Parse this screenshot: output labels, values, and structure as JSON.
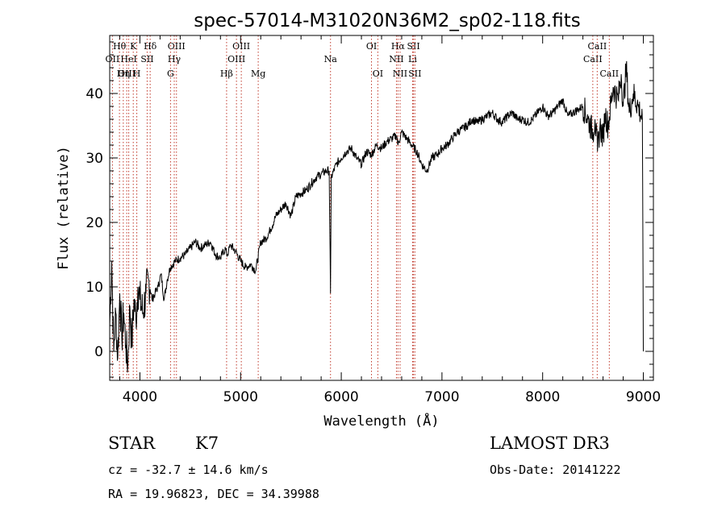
{
  "chart_data": {
    "type": "line",
    "title": "spec-57014-M31020N36M2_sp02-118.fits",
    "xlabel": "Wavelength (Å)",
    "ylabel": "Flux (relative)",
    "xlim": [
      3700,
      9100
    ],
    "ylim": [
      -4.5,
      49
    ],
    "x_ticks": [
      "4000",
      "5000",
      "6000",
      "7000",
      "8000",
      "9000"
    ],
    "y_ticks": [
      "0",
      "10",
      "20",
      "30",
      "40"
    ],
    "grid": false,
    "series": [
      {
        "x": [
          3700,
          3720,
          3740,
          3760,
          3780,
          3800,
          3820,
          3840,
          3860,
          3880,
          3900,
          3920,
          3940,
          3960,
          3980,
          4000,
          4030,
          4060,
          4090,
          4120,
          4150,
          4180,
          4210,
          4240,
          4270,
          4300,
          4350,
          4400,
          4450,
          4500,
          4550,
          4600,
          4650,
          4700,
          4750,
          4800,
          4850,
          4861,
          4880,
          4900,
          4950,
          5000,
          5050,
          5100,
          5150,
          5200,
          5250,
          5300,
          5350,
          5400,
          5450,
          5500,
          5550,
          5600,
          5650,
          5700,
          5750,
          5800,
          5850,
          5880,
          5893,
          5900,
          5950,
          6000,
          6050,
          6100,
          6150,
          6200,
          6250,
          6300,
          6350,
          6400,
          6450,
          6500,
          6550,
          6563,
          6600,
          6650,
          6700,
          6750,
          6800,
          6850,
          6900,
          6950,
          7000,
          7050,
          7100,
          7150,
          7200,
          7250,
          7300,
          7350,
          7400,
          7450,
          7500,
          7550,
          7600,
          7650,
          7700,
          7750,
          7800,
          7850,
          7900,
          7950,
          8000,
          8050,
          8100,
          8150,
          8200,
          8250,
          8300,
          8350,
          8400,
          8450,
          8500,
          8520,
          8545,
          8570,
          8600,
          8620,
          8650,
          8700,
          8750,
          8780,
          8800,
          8830,
          8860,
          8900,
          8950,
          8990,
          9000
        ],
        "values": [
          4.0,
          14.0,
          0.0,
          6.0,
          -1.0,
          9.0,
          2.0,
          6.0,
          1.0,
          -2.0,
          7.0,
          1.0,
          8.0,
          5.0,
          10.0,
          8.0,
          6.0,
          9.0,
          11.0,
          8.0,
          9.0,
          10.0,
          12.0,
          8.0,
          11.0,
          13.0,
          14.0,
          14.5,
          15.0,
          16.0,
          17.0,
          16.0,
          16.5,
          17.0,
          15.0,
          14.5,
          16.0,
          15.0,
          15.5,
          16.5,
          15.5,
          14.0,
          13.0,
          13.5,
          12.5,
          17.0,
          17.5,
          19.0,
          21.0,
          22.0,
          23.0,
          21.0,
          24.0,
          24.5,
          25.0,
          26.0,
          27.0,
          27.5,
          28.0,
          28.0,
          9.0,
          27.0,
          29.0,
          30.0,
          31.0,
          31.5,
          30.0,
          29.0,
          31.0,
          30.5,
          32.0,
          31.5,
          32.5,
          33.0,
          33.5,
          32.0,
          34.0,
          33.0,
          32.0,
          31.0,
          29.0,
          28.0,
          30.0,
          30.5,
          31.5,
          32.0,
          33.0,
          34.0,
          34.5,
          35.0,
          36.0,
          35.5,
          36.0,
          36.5,
          37.0,
          36.0,
          35.5,
          36.5,
          37.0,
          36.0,
          36.0,
          35.5,
          36.0,
          37.0,
          38.0,
          36.5,
          37.0,
          38.0,
          39.0,
          36.5,
          37.0,
          37.5,
          38.0,
          36.0,
          34.0,
          36.0,
          31.0,
          35.0,
          33.0,
          37.0,
          35.0,
          41.0,
          39.0,
          43.0,
          38.0,
          44.0,
          37.0,
          40.0,
          38.0,
          36.0,
          0.0
        ]
      }
    ],
    "line_markers": [
      {
        "label": "Hθ",
        "x": 3797,
        "row": 1
      },
      {
        "label": "OII",
        "x": 3727,
        "row": 2
      },
      {
        "label": "OIII",
        "x": 3869,
        "row": 3
      },
      {
        "label": "HeI",
        "x": 3889,
        "row": 2
      },
      {
        "label": "Hη",
        "x": 3835,
        "row": 3
      },
      {
        "label": "K",
        "x": 3934,
        "row": 1
      },
      {
        "label": "H",
        "x": 3969,
        "row": 3
      },
      {
        "label": "SII",
        "x": 4072,
        "row": 2
      },
      {
        "label": "Hδ",
        "x": 4102,
        "row": 1
      },
      {
        "label": "OIII",
        "x": 4363,
        "row": 1
      },
      {
        "label": "Hγ",
        "x": 4341,
        "row": 2
      },
      {
        "label": "G",
        "x": 4304,
        "row": 3
      },
      {
        "label": "OIII",
        "x": 5007,
        "row": 1
      },
      {
        "label": "OIII",
        "x": 4959,
        "row": 2
      },
      {
        "label": "Hβ",
        "x": 4861,
        "row": 3
      },
      {
        "label": "Mg",
        "x": 5175,
        "row": 3
      },
      {
        "label": "Na",
        "x": 5893,
        "row": 2
      },
      {
        "label": "OI",
        "x": 6300,
        "row": 1
      },
      {
        "label": "OI",
        "x": 6363,
        "row": 3
      },
      {
        "label": "Hα",
        "x": 6563,
        "row": 1
      },
      {
        "label": "NII",
        "x": 6548,
        "row": 2
      },
      {
        "label": "NII",
        "x": 6584,
        "row": 3
      },
      {
        "label": "SII",
        "x": 6717,
        "row": 1
      },
      {
        "label": "Li",
        "x": 6708,
        "row": 2
      },
      {
        "label": "SII",
        "x": 6731,
        "row": 3
      },
      {
        "label": "CaII",
        "x": 8498,
        "row": 2
      },
      {
        "label": "CaII",
        "x": 8542,
        "row": 1
      },
      {
        "label": "CaII",
        "x": 8662,
        "row": 3
      }
    ]
  },
  "info": {
    "object_class": "STAR",
    "subclass": "K7",
    "survey": "LAMOST DR3",
    "cz": "cz = -32.7 ± 14.6 km/s",
    "obs_date": "Obs-Date: 20141222",
    "coords": "RA =  19.96823, DEC =  34.39988"
  },
  "colors": {
    "spectrum": "#000000",
    "marker_line": "#c0392b"
  }
}
